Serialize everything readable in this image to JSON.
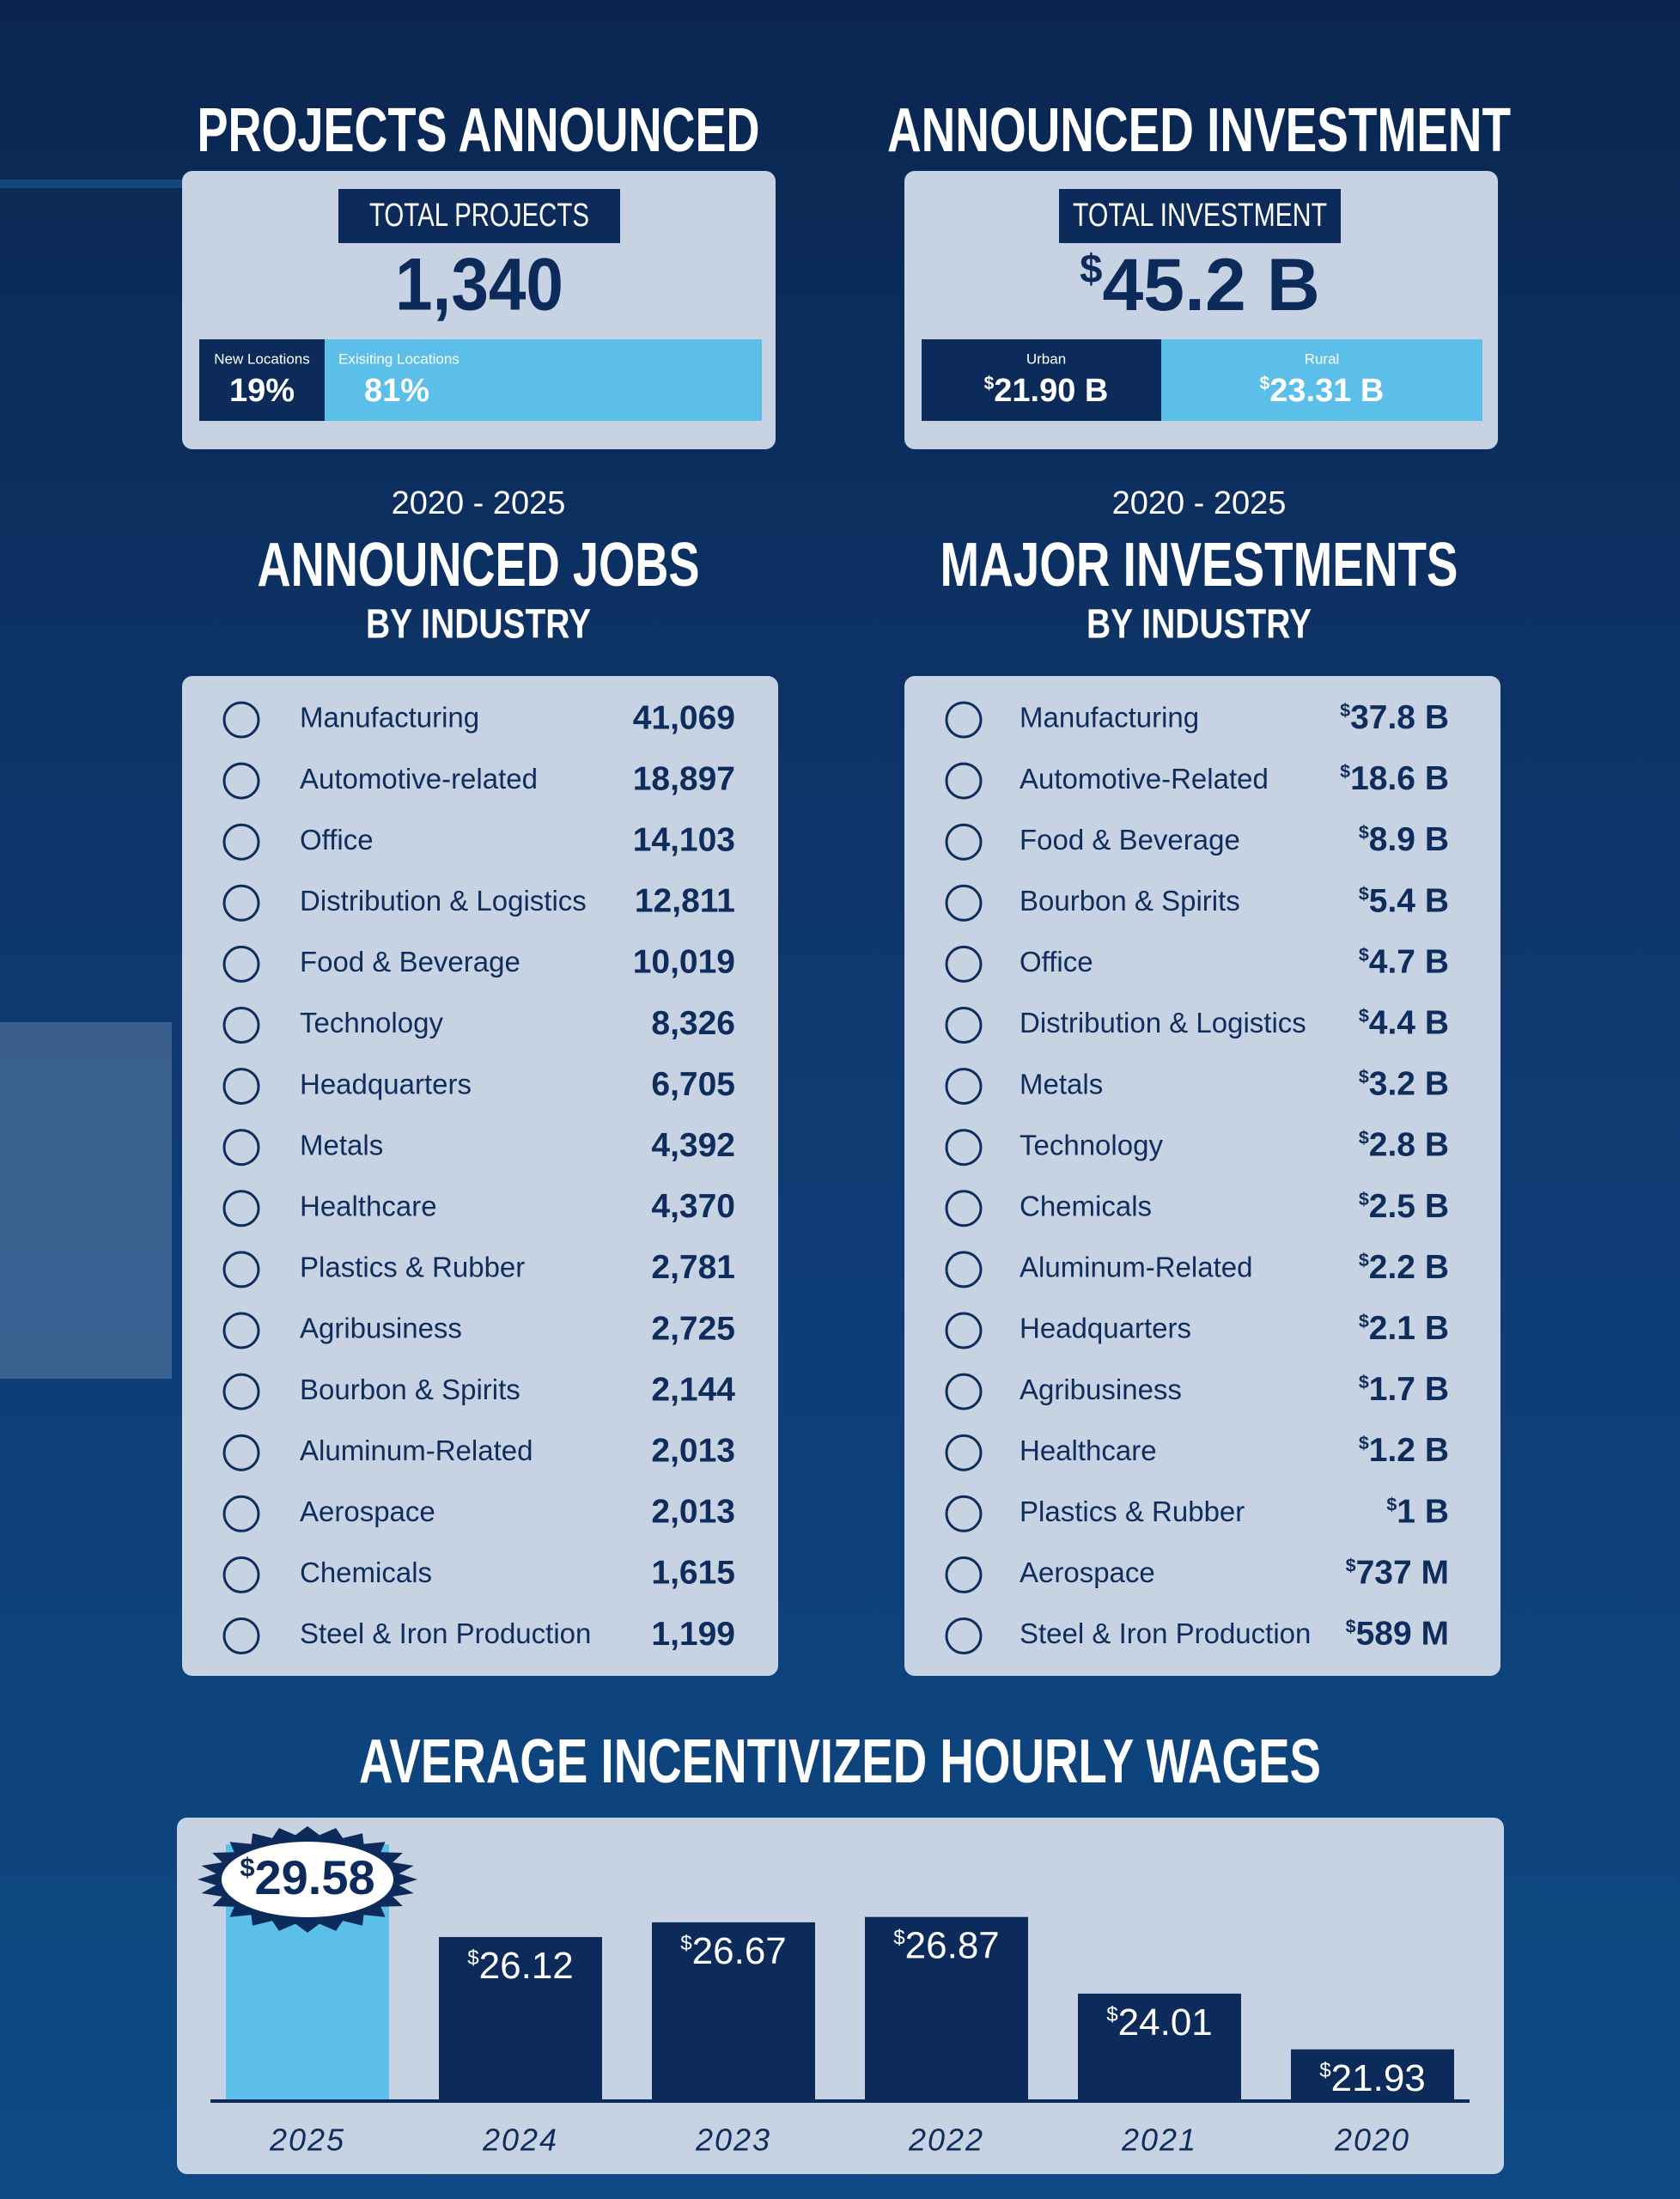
{
  "projects": {
    "title": "PROJECTS ANNOUNCED",
    "box_label": "TOTAL PROJECTS",
    "total": "1,340",
    "new_label": "New Locations",
    "new_value": "19%",
    "existing_label": "Exisiting Locations",
    "existing_value": "81%"
  },
  "investment": {
    "title": "ANNOUNCED INVESTMENT",
    "box_label": "TOTAL INVESTMENT",
    "total": "$45.2 B",
    "urban_label": "Urban",
    "urban_value": "$21.90 B",
    "rural_label": "Rural",
    "rural_value": "$23.31 B"
  },
  "jobs": {
    "period": "2020 - 2025",
    "title": "ANNOUNCED JOBS",
    "subtitle": "BY INDUSTRY",
    "rows": [
      {
        "industry": "Manufacturing",
        "value": "41,069"
      },
      {
        "industry": "Automotive-related",
        "value": "18,897"
      },
      {
        "industry": "Office",
        "value": "14,103"
      },
      {
        "industry": "Distribution & Logistics",
        "value": "12,811"
      },
      {
        "industry": "Food & Beverage",
        "value": "10,019"
      },
      {
        "industry": "Technology",
        "value": "8,326"
      },
      {
        "industry": "Headquarters",
        "value": "6,705"
      },
      {
        "industry": "Metals",
        "value": "4,392"
      },
      {
        "industry": "Healthcare",
        "value": "4,370"
      },
      {
        "industry": "Plastics & Rubber",
        "value": "2,781"
      },
      {
        "industry": "Agribusiness",
        "value": "2,725"
      },
      {
        "industry": "Bourbon & Spirits",
        "value": "2,144"
      },
      {
        "industry": "Aluminum-Related",
        "value": "2,013"
      },
      {
        "industry": "Aerospace",
        "value": "2,013"
      },
      {
        "industry": "Chemicals",
        "value": "1,615"
      },
      {
        "industry": "Steel & Iron Production",
        "value": "1,199"
      }
    ]
  },
  "investments": {
    "period": "2020 - 2025",
    "title": "MAJOR INVESTMENTS",
    "subtitle": "BY INDUSTRY",
    "rows": [
      {
        "industry": "Manufacturing",
        "value": "$37.8 B"
      },
      {
        "industry": "Automotive-Related",
        "value": "$18.6 B"
      },
      {
        "industry": "Food & Beverage",
        "value": "$8.9 B"
      },
      {
        "industry": "Bourbon & Spirits",
        "value": "$5.4 B"
      },
      {
        "industry": "Office",
        "value": "$4.7 B"
      },
      {
        "industry": "Distribution & Logistics",
        "value": "$4.4 B"
      },
      {
        "industry": "Metals",
        "value": "$3.2 B"
      },
      {
        "industry": "Technology",
        "value": "$2.8 B"
      },
      {
        "industry": "Chemicals",
        "value": "$2.5 B"
      },
      {
        "industry": "Aluminum-Related",
        "value": "$2.2 B"
      },
      {
        "industry": "Headquarters",
        "value": "$2.1 B"
      },
      {
        "industry": "Agribusiness",
        "value": "$1.7 B"
      },
      {
        "industry": "Healthcare",
        "value": "$1.2 B"
      },
      {
        "industry": "Plastics & Rubber",
        "value": "$1 B"
      },
      {
        "industry": "Aerospace",
        "value": "$737 M"
      },
      {
        "industry": "Steel & Iron Production",
        "value": "$589 M"
      }
    ]
  },
  "chart_data": {
    "type": "bar",
    "title": "AVERAGE INCENTIVIZED HOURLY WAGES",
    "categories": [
      "2025",
      "2024",
      "2023",
      "2022",
      "2021",
      "2020"
    ],
    "values": [
      29.58,
      26.12,
      26.67,
      26.87,
      24.01,
      21.93
    ],
    "value_labels": [
      "$29.58",
      "$26.12",
      "$26.67",
      "$26.87",
      "$24.01",
      "$21.93"
    ],
    "colors": [
      "#5bbfea",
      "#0d2b5a",
      "#0d2b5a",
      "#0d2b5a",
      "#0d2b5a",
      "#0d2b5a"
    ],
    "ylim": [
      20,
      30
    ]
  }
}
